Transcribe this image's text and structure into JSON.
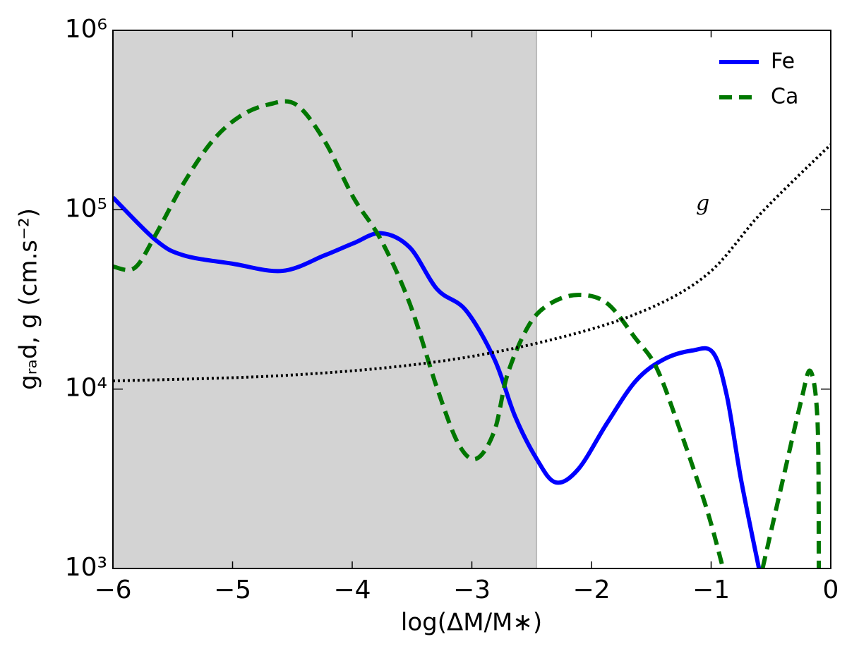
{
  "chart_data": {
    "type": "line",
    "xlabel": "log(ΔM/M∗)",
    "ylabel": "gᵣₐd, g (cm.s⁻²)",
    "annotation": {
      "text": "g",
      "x": -1.07,
      "y": 107000
    },
    "xlim": [
      -6,
      0
    ],
    "ylim": [
      1000,
      1000000
    ],
    "log_y": true,
    "xticks": [
      {
        "value": -6,
        "label": "−6"
      },
      {
        "value": -5,
        "label": "−5"
      },
      {
        "value": -4,
        "label": "−4"
      },
      {
        "value": -3,
        "label": "−3"
      },
      {
        "value": -2,
        "label": "−2"
      },
      {
        "value": -1,
        "label": "−1"
      },
      0
    ],
    "yticks": [
      {
        "value": 1000,
        "label": "10³"
      },
      {
        "value": 10000,
        "label": "10⁴"
      },
      {
        "value": 100000,
        "label": "10⁵"
      },
      {
        "value": 1000000,
        "label": "10⁶"
      }
    ],
    "shaded_xrange": [
      -6,
      -2.46
    ],
    "shade_color": "#d3d3d3",
    "legend": "upper right",
    "series": [
      {
        "name": "Fe",
        "color": "#0000ff",
        "linestyle": "solid",
        "x": [
          -6,
          -5.646,
          -5.41,
          -5.0,
          -4.584,
          -4.23,
          -3.99,
          -3.76,
          -3.52,
          -3.29,
          -3.05,
          -2.81,
          -2.64,
          -2.46,
          -2.3,
          -2.11,
          -1.87,
          -1.63,
          -1.4,
          -1.16,
          -0.985,
          -0.87,
          -0.75,
          -0.6
        ],
        "values": [
          117000,
          68000,
          55700,
          50000,
          45600,
          55700,
          65000,
          74000,
          61700,
          36000,
          27500,
          14600,
          7080,
          4100,
          3020,
          3580,
          6460,
          11100,
          14600,
          16400,
          16000,
          9270,
          3130,
          1000
        ]
      },
      {
        "name": "Ca",
        "color": "#007700",
        "linestyle": "dashed",
        "x": [
          -6,
          -5.82,
          -5.65,
          -5.41,
          -5.17,
          -4.94,
          -4.7,
          -4.47,
          -4.23,
          -3.99,
          -3.76,
          -3.52,
          -3.29,
          -3.11,
          -2.96,
          -2.81,
          -2.7,
          -2.52,
          -2.34,
          -2.11,
          -1.87,
          -1.63,
          -1.46,
          -1.28,
          -1.04,
          -0.9,
          -0.73,
          -0.57,
          -0.4,
          -0.25,
          -0.17,
          -0.11,
          -0.1
        ],
        "values": [
          48200,
          47300,
          71100,
          140000,
          241000,
          331000,
          386000,
          386000,
          241000,
          117000,
          68000,
          30100,
          10100,
          4920,
          4100,
          5890,
          12200,
          22900,
          30100,
          33500,
          30100,
          19100,
          13300,
          6460,
          2180,
          1000,
          null,
          1000,
          3130,
          8470,
          12600,
          6460,
          1000
        ]
      },
      {
        "color": "#000000",
        "linestyle": "dotted",
        "x": [
          -6,
          -4.58,
          -3.4,
          -2.46,
          -1.63,
          -1.04,
          -0.57,
          0
        ],
        "values": [
          11100,
          11900,
          13900,
          18000,
          26200,
          43200,
          97700,
          231000
        ]
      }
    ]
  }
}
